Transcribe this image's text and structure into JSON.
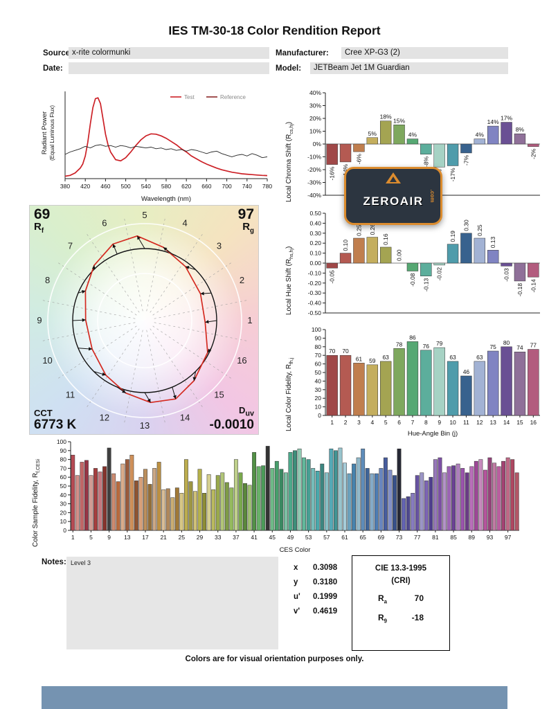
{
  "page": {
    "title": "IES TM-30-18 Color Rendition Report",
    "footer_note": "Colors are for visual orientation purposes only."
  },
  "header": {
    "fields": [
      {
        "label": "Source:",
        "value": "x-rite colormunki"
      },
      {
        "label": "Manufacturer:",
        "value": "Cree XP-G3 (2)"
      },
      {
        "label": "Date:",
        "value": ""
      },
      {
        "label": "Model:",
        "value": "JETBeam Jet 1M Guardian"
      }
    ]
  },
  "notes": {
    "label": "Notes:",
    "content": "Level 3"
  },
  "chromaticity": {
    "rows": [
      {
        "label": "x",
        "value": "0.3098"
      },
      {
        "label": "y",
        "value": "0.3180"
      },
      {
        "label": "u'",
        "value": "0.1999"
      },
      {
        "label": "v'",
        "value": "0.4619"
      }
    ]
  },
  "cie": {
    "title": "CIE 13.3-1995",
    "subtitle": "(CRI)",
    "rows": [
      {
        "pre": "R",
        "sub": "a",
        "value": "70"
      },
      {
        "pre": "R",
        "sub": "9",
        "value": "-18"
      }
    ]
  },
  "watermark": {
    "text": "ZEROAIR",
    "suffix": ".com",
    "accent": "#dc8c2e",
    "bg": "#2c3540"
  },
  "bin_colors": [
    "#a04848",
    "#b45a52",
    "#c07e4e",
    "#c4ae5e",
    "#a4a452",
    "#7ea85e",
    "#56a873",
    "#5cae9c",
    "#a6d2c4",
    "#4f9cab",
    "#38628e",
    "#a2b2d4",
    "#8084c2",
    "#6a5094",
    "#8f7099",
    "#b25c7e"
  ],
  "chart_data": [
    {
      "id": "spd",
      "type": "line",
      "xlabel": "Wavelength (nm)",
      "ylabel_line1": "Radiant Power",
      "ylabel_line2": "(Equal Luminous Flux)",
      "xlim": [
        380,
        780
      ],
      "ylim": [
        0,
        1.08
      ],
      "x_ticks": [
        380,
        420,
        460,
        500,
        540,
        580,
        620,
        660,
        700,
        740,
        780
      ],
      "legend": [
        {
          "label": "Test",
          "color": "#cc2026"
        },
        {
          "label": "Reference",
          "color": "#8b2727"
        }
      ],
      "series": [
        {
          "name": "Test",
          "color": "#cc2026",
          "x": [
            380,
            390,
            400,
            410,
            415,
            420,
            425,
            430,
            435,
            440,
            445,
            450,
            455,
            460,
            465,
            470,
            480,
            490,
            500,
            510,
            520,
            530,
            540,
            550,
            560,
            570,
            580,
            590,
            600,
            610,
            620,
            630,
            640,
            650,
            660,
            670,
            680,
            690,
            700,
            710,
            720,
            730,
            740,
            750,
            760,
            770,
            780
          ],
          "y": [
            0.03,
            0.04,
            0.07,
            0.13,
            0.18,
            0.28,
            0.45,
            0.68,
            0.88,
            0.99,
            1.0,
            0.93,
            0.74,
            0.55,
            0.42,
            0.33,
            0.235,
            0.22,
            0.26,
            0.33,
            0.41,
            0.48,
            0.53,
            0.555,
            0.55,
            0.53,
            0.5,
            0.46,
            0.42,
            0.37,
            0.33,
            0.28,
            0.245,
            0.21,
            0.18,
            0.155,
            0.13,
            0.11,
            0.095,
            0.08,
            0.07,
            0.06,
            0.055,
            0.05,
            0.045,
            0.04,
            0.038
          ]
        },
        {
          "name": "Reference",
          "color": "#222222",
          "x": [
            380,
            390,
            400,
            410,
            420,
            430,
            440,
            450,
            460,
            470,
            480,
            490,
            500,
            510,
            520,
            530,
            540,
            550,
            560,
            570,
            580,
            590,
            600,
            610,
            620,
            630,
            640,
            650,
            660,
            670,
            680,
            690,
            700,
            710,
            720,
            730,
            740,
            750,
            760,
            770,
            780
          ],
          "y": [
            0.3,
            0.33,
            0.35,
            0.37,
            0.4,
            0.38,
            0.41,
            0.42,
            0.4,
            0.41,
            0.39,
            0.41,
            0.4,
            0.38,
            0.4,
            0.39,
            0.38,
            0.39,
            0.37,
            0.38,
            0.36,
            0.37,
            0.35,
            0.36,
            0.34,
            0.36,
            0.35,
            0.33,
            0.31,
            0.33,
            0.34,
            0.31,
            0.29,
            0.27,
            0.29,
            0.3,
            0.28,
            0.31,
            0.29,
            0.26,
            0.27
          ]
        }
      ]
    },
    {
      "id": "chroma",
      "type": "bar",
      "ylabel_pre": "Local Chroma Shift (R",
      "ylabel_sub": "cs,hj",
      "ylabel_post": ")",
      "categories": [
        1,
        2,
        3,
        4,
        5,
        6,
        7,
        8,
        9,
        10,
        11,
        12,
        13,
        14,
        15,
        16
      ],
      "values": [
        -16,
        -14,
        -6,
        5,
        18,
        15,
        4,
        -8,
        -18,
        -17,
        -7,
        4,
        14,
        17,
        8,
        -2
      ],
      "value_suffix": "%",
      "ylim": [
        -40,
        40
      ],
      "ytick_step": 10
    },
    {
      "id": "hue",
      "type": "bar",
      "ylabel_pre": "Local Hue Shift (R",
      "ylabel_sub": "hs,hj",
      "ylabel_post": ")",
      "categories": [
        1,
        2,
        3,
        4,
        5,
        6,
        7,
        8,
        9,
        10,
        11,
        12,
        13,
        14,
        15,
        16
      ],
      "values": [
        -0.05,
        0.1,
        0.25,
        0.26,
        0.16,
        0.0,
        -0.08,
        -0.13,
        -0.02,
        0.19,
        0.3,
        0.25,
        0.13,
        -0.03,
        -0.18,
        -0.14
      ],
      "ylim": [
        -0.5,
        0.5
      ],
      "ytick_step": 0.1
    },
    {
      "id": "fidelity",
      "type": "bar",
      "xlabel": "Hue-Angle Bin (j)",
      "ylabel_pre": "Local Color Fidelity, R",
      "ylabel_sub": "fh,j",
      "ylabel_post": "",
      "categories": [
        1,
        2,
        3,
        4,
        5,
        6,
        7,
        8,
        9,
        10,
        11,
        12,
        13,
        14,
        15,
        16
      ],
      "values": [
        70,
        70,
        61,
        59,
        63,
        78,
        86,
        76,
        79,
        63,
        46,
        63,
        75,
        80,
        74,
        77
      ],
      "ylim": [
        0,
        100
      ],
      "ytick_step": 10
    },
    {
      "id": "ces",
      "type": "bar",
      "xlabel": "CES Color",
      "ylabel_pre": "Color Sample Fidelity, R",
      "ylabel_sub": "f,CESi",
      "ylabel_post": "",
      "x_tick_labels": [
        1,
        5,
        9,
        13,
        17,
        21,
        25,
        29,
        33,
        37,
        41,
        45,
        49,
        53,
        57,
        61,
        65,
        69,
        73,
        77,
        81,
        85,
        89,
        93,
        97
      ],
      "values": [
        85,
        62,
        77,
        79,
        62,
        70,
        66,
        72,
        93,
        64,
        55,
        75,
        80,
        85,
        56,
        60,
        69,
        52,
        70,
        77,
        46,
        47,
        37,
        48,
        42,
        80,
        55,
        44,
        69,
        42,
        63,
        46,
        62,
        65,
        54,
        48,
        80,
        65,
        53,
        51,
        88,
        72,
        73,
        95,
        70,
        78,
        69,
        65,
        88,
        90,
        92,
        82,
        80,
        70,
        67,
        75,
        65,
        92,
        90,
        93,
        76,
        64,
        75,
        82,
        92,
        70,
        64,
        64,
        70,
        82,
        68,
        62,
        92,
        36,
        38,
        42,
        62,
        65,
        56,
        60,
        80,
        82,
        65,
        72,
        73,
        75,
        70,
        65,
        72,
        78,
        80,
        68,
        82,
        76,
        72,
        78,
        82,
        80,
        65
      ],
      "colors": [
        "hsl(355,42%,50%)",
        "hsl(5,45%,68%)",
        "hsl(0,42%,58%)",
        "hsl(350,48%,40%)",
        "hsl(8,40%,70%)",
        "hsl(0,45%,45%)",
        "hsl(355,40%,62%)",
        "hsl(5,50%,35%)",
        "hsl(0,0%,25%)",
        "hsl(18,48%,62%)",
        "hsl(22,50%,48%)",
        "hsl(25,52%,70%)",
        "hsl(20,45%,42%)",
        "hsl(28,55%,58%)",
        "hsl(22,48%,38%)",
        "hsl(25,55%,66%)",
        "hsl(32,42%,55%)",
        "hsl(35,45%,40%)",
        "hsl(30,40%,66%)",
        "hsl(38,48%,50%)",
        "hsl(35,45%,72%)",
        "hsl(32,35%,52%)",
        "hsl(40,45%,62%)",
        "hsl(38,50%,42%)",
        "hsl(48,50%,68%)",
        "hsl(52,45%,52%)",
        "hsl(55,40%,44%)",
        "hsl(50,48%,64%)",
        "hsl(58,42%,50%)",
        "hsl(60,45%,38%)",
        "hsl(55,45%,70%)",
        "hsl(60,40%,55%)",
        "hsl(70,38%,48%)",
        "hsl(75,40%,62%)",
        "hsl(80,38%,44%)",
        "hsl(85,40%,55%)",
        "hsl(75,42%,68%)",
        "hsl(90,38%,48%)",
        "hsl(95,40%,38%)",
        "hsl(85,38%,60%)",
        "hsl(110,35%,42%)",
        "hsl(120,32%,55%)",
        "hsl(130,35%,45%)",
        "hsl(0,0%,20%)",
        "hsl(140,35%,58%)",
        "hsl(145,38%,45%)",
        "hsl(150,40%,38%)",
        "hsl(155,35%,62%)",
        "hsl(160,38%,48%)",
        "hsl(165,40%,40%)",
        "hsl(155,35%,68%)",
        "hsl(160,38%,55%)",
        "hsl(172,38%,45%)",
        "hsl(178,35%,60%)",
        "hsl(182,40%,48%)",
        "hsl(175,38%,38%)",
        "hsl(185,35%,65%)",
        "hsl(188,40%,52%)",
        "hsl(180,38%,42%)",
        "hsl(190,35%,70%)",
        "hsl(195,40%,75%)",
        "hsl(200,38%,58%)",
        "hsl(205,42%,48%)",
        "hsl(198,35%,68%)",
        "hsl(210,40%,55%)",
        "hsl(215,42%,42%)",
        "hsl(205,38%,65%)",
        "hsl(212,40%,50%)",
        "hsl(220,40%,58%)",
        "hsl(225,38%,45%)",
        "hsl(228,40%,65%)",
        "hsl(222,42%,38%)",
        "hsl(230,15%,18%)",
        "hsl(240,35%,55%)",
        "hsl(245,32%,42%)",
        "hsl(250,35%,62%)",
        "hsl(255,32%,48%)",
        "hsl(248,30%,68%)",
        "hsl(258,35%,55%)",
        "hsl(252,38%,40%)",
        "hsl(268,32%,60%)",
        "hsl(272,35%,48%)",
        "hsl(278,32%,68%)",
        "hsl(282,35%,55%)",
        "hsl(270,38%,42%)",
        "hsl(285,32%,62%)",
        "hsl(288,35%,50%)",
        "hsl(278,38%,38%)",
        "hsl(300,35%,58%)",
        "hsl(305,38%,45%)",
        "hsl(310,35%,66%)",
        "hsl(315,40%,52%)",
        "hsl(320,38%,42%)",
        "hsl(325,35%,62%)",
        "hsl(318,40%,55%)",
        "hsl(330,42%,45%)",
        "hsl(340,40%,58%)",
        "hsl(345,42%,48%)",
        "hsl(350,38%,52%)"
      ],
      "ylim": [
        0,
        100
      ],
      "ytick_step": 10
    },
    {
      "id": "cvg",
      "type": "color-vector-graphic",
      "rf_value": "69",
      "rf_pre": "R",
      "rf_sub": "f",
      "rg_value": "97",
      "rg_pre": "R",
      "rg_sub": "g",
      "cct_label": "CCT",
      "cct_value": "6773 K",
      "duv_pre": "D",
      "duv_sub": "uv",
      "duv_value": "-0.0010",
      "bin_labels": [
        "1",
        "2",
        "3",
        "4",
        "5",
        "6",
        "7",
        "8",
        "9",
        "10",
        "11",
        "12",
        "13",
        "14",
        "15",
        "16"
      ],
      "test_color": "#d42a20",
      "test_radii": [
        0.84,
        0.86,
        0.94,
        1.05,
        1.18,
        1.15,
        1.04,
        0.92,
        0.82,
        0.83,
        0.93,
        1.04,
        1.14,
        1.17,
        1.08,
        0.98
      ]
    }
  ]
}
